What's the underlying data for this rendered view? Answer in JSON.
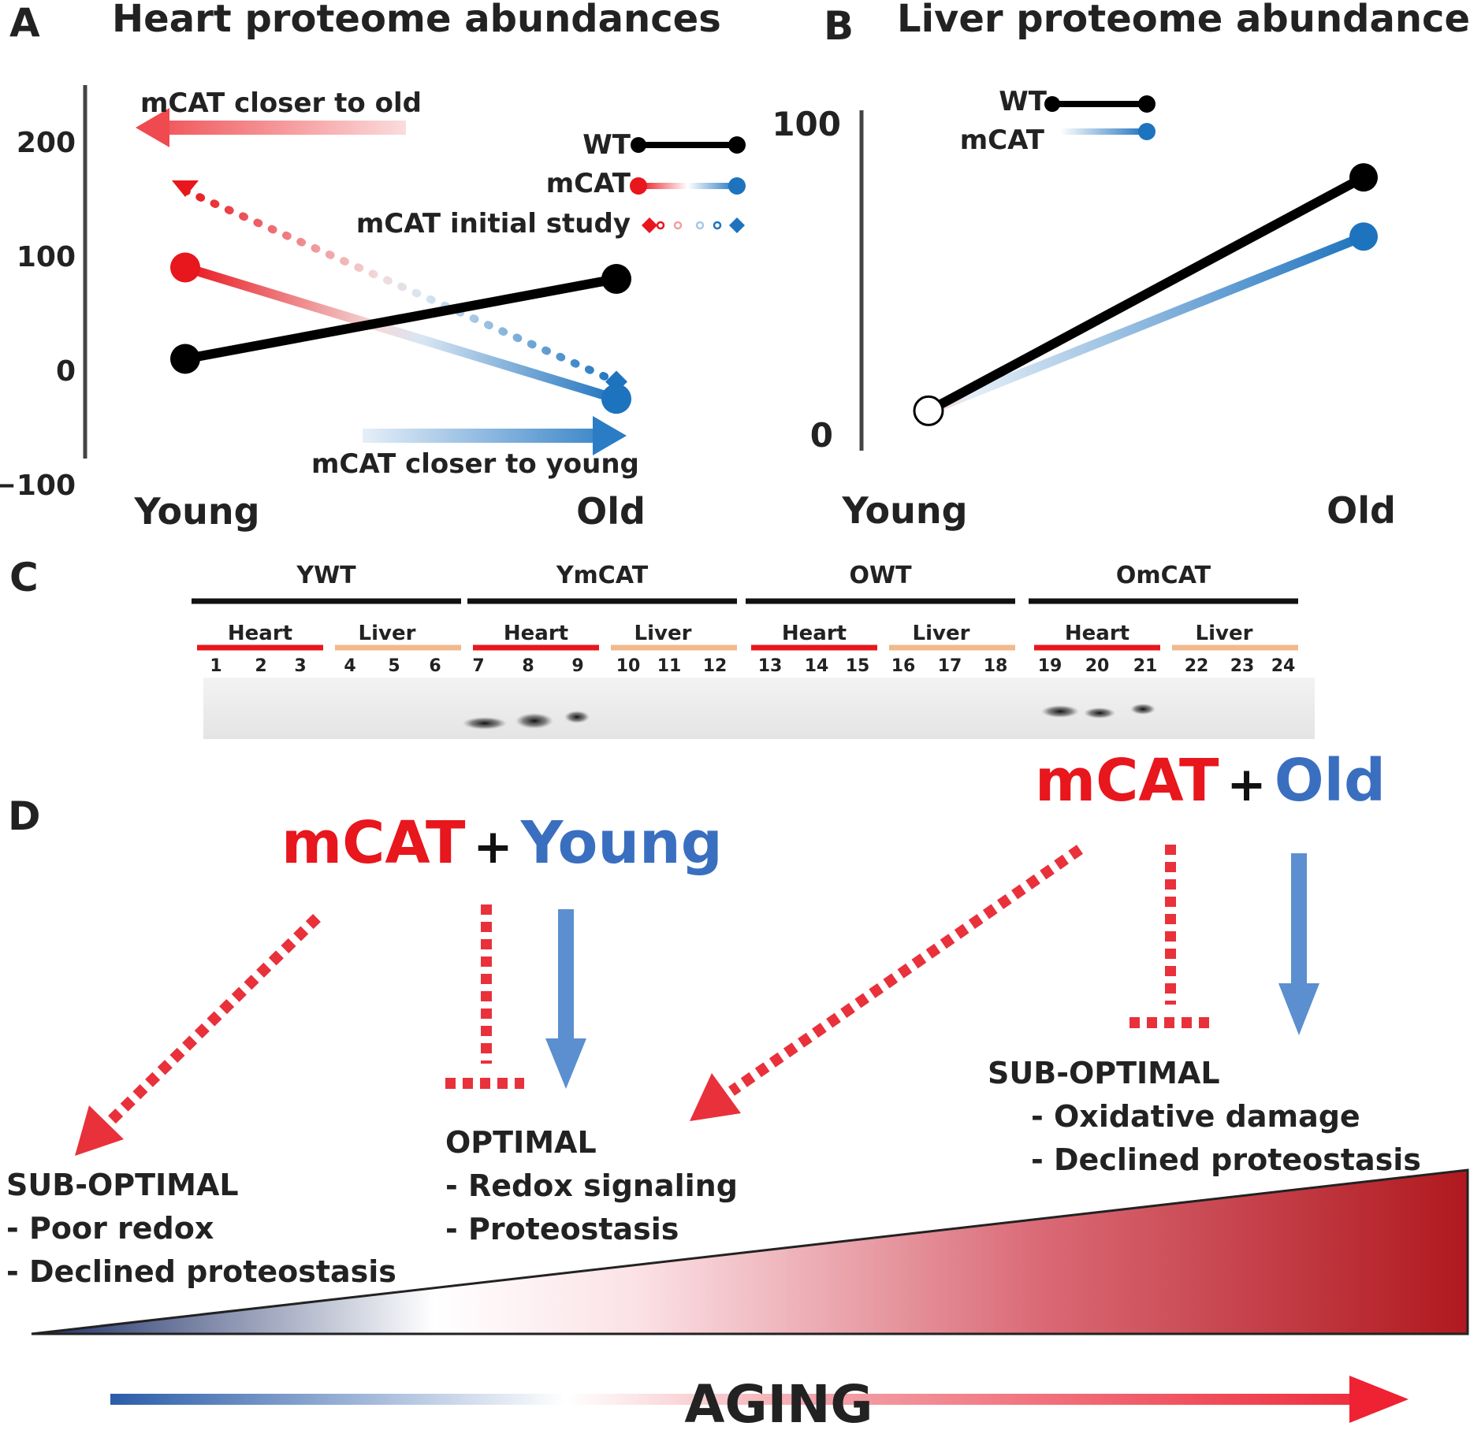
{
  "colors": {
    "wt": "#000000",
    "mcat_young": "#e8161d",
    "mcat_old": "#1e73be",
    "legend_label": "#222222",
    "aging_red": "#b0181e",
    "aging_blue": "#2a5ca8"
  },
  "panelA": {
    "letter": "A",
    "title": "Heart proteome abundances",
    "arrow_old_label": "mCAT closer to old",
    "arrow_young_label": "mCAT closer to young",
    "legend": {
      "wt": "WT",
      "mcat": "mCAT",
      "initial": "mCAT initial study"
    }
  },
  "panelB": {
    "letter": "B",
    "title": "Liver proteome abundances",
    "legend": {
      "wt": "WT",
      "mcat": "mCAT"
    }
  },
  "chart_data": [
    {
      "type": "line",
      "title": "Heart proteome abundances",
      "categories": [
        "Young",
        "Old"
      ],
      "y_ticks": [
        "200",
        "100",
        "0",
        "−100"
      ],
      "tick_values": [
        200,
        100,
        0,
        -100
      ],
      "ylim": [
        -100,
        200
      ],
      "series": [
        {
          "name": "WT",
          "values": [
            10,
            80
          ]
        },
        {
          "name": "mCAT",
          "values": [
            90,
            -25
          ]
        },
        {
          "name": "mCAT initial study",
          "values": [
            160,
            -10
          ]
        }
      ]
    },
    {
      "type": "line",
      "title": "Liver proteome abundances",
      "categories": [
        "Young",
        "Old"
      ],
      "y_ticks": [
        "100",
        "0"
      ],
      "tick_values": [
        100,
        0
      ],
      "ylim": [
        0,
        100
      ],
      "series": [
        {
          "name": "WT",
          "values": [
            8,
            83
          ]
        },
        {
          "name": "mCAT",
          "values": [
            8,
            64
          ]
        }
      ]
    }
  ],
  "panelC": {
    "letter": "C",
    "groups": [
      {
        "label": "YWT",
        "heart": "Heart",
        "liver": "Liver"
      },
      {
        "label": "YmCAT",
        "heart": "Heart",
        "liver": "Liver"
      },
      {
        "label": "OWT",
        "heart": "Heart",
        "liver": "Liver"
      },
      {
        "label": "OmCAT",
        "heart": "Heart",
        "liver": "Liver"
      }
    ],
    "lanes": [
      "1",
      "2",
      "3",
      "4",
      "5",
      "6",
      "7",
      "8",
      "9",
      "10",
      "11",
      "12",
      "13",
      "14",
      "15",
      "16",
      "17",
      "18",
      "19",
      "20",
      "21",
      "22",
      "23",
      "24"
    ]
  },
  "panelD": {
    "letter": "D",
    "young_mcat": "mCAT",
    "young_plus": "+",
    "young_label": "Young",
    "old_mcat": "mCAT",
    "old_plus": "+",
    "old_label": "Old",
    "box_left": {
      "title": "SUB-OPTIMAL",
      "line1": "- Poor redox",
      "line2": "- Declined proteostasis"
    },
    "box_mid": {
      "title": "OPTIMAL",
      "line1": "- Redox signaling",
      "line2": "- Proteostasis"
    },
    "box_right": {
      "title": "SUB-OPTIMAL",
      "line1": "- Oxidative damage",
      "line2": "- Declined proteostasis"
    },
    "aging": "AGING"
  }
}
